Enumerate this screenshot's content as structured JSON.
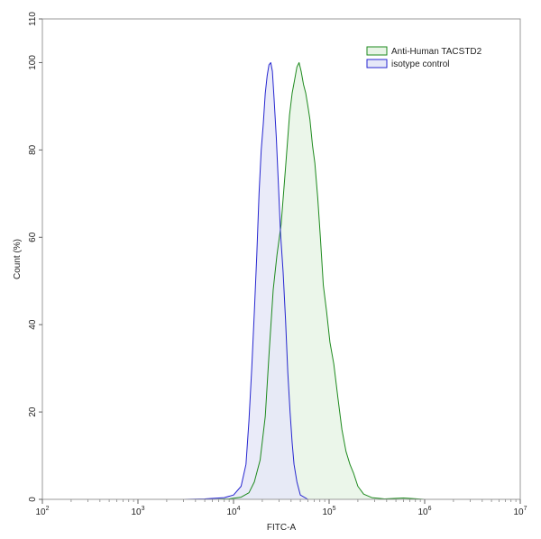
{
  "chart_data": {
    "type": "area",
    "title": "",
    "xlabel": "FITC-A",
    "ylabel": "Count  (%)",
    "xscale": "log",
    "xlim": [
      100,
      10000000
    ],
    "ylim": [
      0,
      110
    ],
    "x_ticks": [
      {
        "base": "10",
        "exp": "2",
        "value": 100
      },
      {
        "base": "10",
        "exp": "3",
        "value": 1000
      },
      {
        "base": "10",
        "exp": "4",
        "value": 10000
      },
      {
        "base": "10",
        "exp": "5",
        "value": 100000
      },
      {
        "base": "10",
        "exp": "6",
        "value": 1000000
      },
      {
        "base": "10",
        "exp": "7",
        "value": 10000000
      }
    ],
    "y_ticks": [
      "0",
      "20",
      "40",
      "60",
      "80",
      "100",
      "110"
    ],
    "y_tick_values": [
      0,
      20,
      40,
      60,
      80,
      100,
      110
    ],
    "grid": false,
    "legend_position": "top-right",
    "series": [
      {
        "name": "Anti-Human TACSTD2",
        "color": "#1e8a1e",
        "fill": "#e8f4e6",
        "x": [
          3000,
          6000,
          9000,
          12000,
          14500,
          16500,
          19000,
          21500,
          23500,
          26000,
          28500,
          31500,
          35000,
          38500,
          41000,
          43500,
          46000,
          48500,
          51000,
          54000,
          57000,
          60000,
          63000,
          67000,
          71000,
          76000,
          81000,
          87000,
          94000,
          102000,
          112000,
          124000,
          136000,
          150000,
          165000,
          180000,
          200000,
          230000,
          280000,
          380000,
          600000,
          1000000
        ],
        "y": [
          0,
          0,
          0.1,
          0.5,
          1.5,
          4,
          9,
          19,
          33,
          48,
          56,
          63,
          76,
          88,
          93,
          96,
          99,
          100,
          98,
          95,
          93,
          90,
          87,
          81,
          77,
          69,
          60,
          49,
          43,
          36,
          31,
          23,
          16,
          11,
          8,
          6,
          3,
          1.2,
          0.4,
          0.1,
          0.3,
          0
        ]
      },
      {
        "name": "isotype control",
        "color": "#2626d0",
        "fill": "#e6e8f8",
        "x": [
          3000,
          5000,
          8000,
          10000,
          12000,
          13500,
          14500,
          15500,
          16500,
          17500,
          18500,
          19500,
          20500,
          21500,
          22500,
          23500,
          24500,
          25500,
          26500,
          28000,
          29500,
          31000,
          33000,
          35000,
          37000,
          39000,
          41000,
          43000,
          46000,
          50000,
          60000
        ],
        "y": [
          0,
          0.1,
          0.4,
          1,
          3,
          8,
          18,
          30,
          43,
          56,
          70,
          80,
          86,
          93,
          97,
          99.5,
          100,
          98,
          92,
          83,
          72,
          61,
          52,
          41,
          29,
          20,
          13,
          8,
          4,
          1,
          0
        ]
      }
    ]
  }
}
